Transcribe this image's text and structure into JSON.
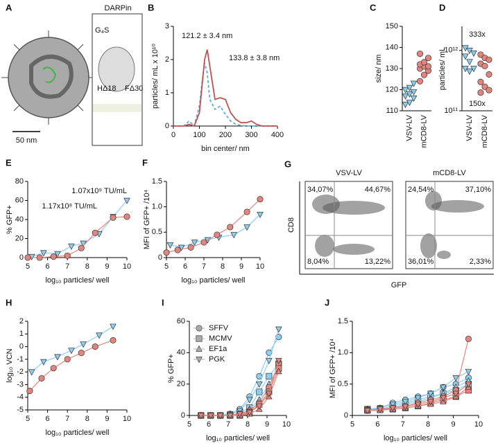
{
  "chart_data": [
    {
      "type": "line",
      "panel": "B",
      "xlabel": "bin center/ nm",
      "ylabel": "particles/ mL x 10¹⁰",
      "x": [
        0,
        40,
        60,
        80,
        100,
        110,
        120,
        130,
        140,
        160,
        180,
        200,
        220,
        240,
        260,
        280,
        300,
        320,
        340,
        360,
        380,
        400
      ],
      "xlim": [
        0,
        400
      ],
      "xticks": [
        0,
        100,
        200,
        300,
        400
      ],
      "ylim": [
        0,
        3
      ],
      "yticks": [
        0,
        1,
        2,
        3
      ],
      "series": [
        {
          "color": "#5aaee0",
          "dash": true,
          "values": [
            0,
            0,
            0.15,
            0,
            0.6,
            1.3,
            1.9,
            1.6,
            0.8,
            0.5,
            0.6,
            0.35,
            0.15,
            0.05,
            0.02,
            0,
            0,
            0,
            0,
            0,
            0,
            0
          ]
        },
        {
          "color": "#c0504d",
          "values": [
            0,
            0,
            0.05,
            0,
            0.4,
            1.2,
            2.0,
            2.3,
            1.8,
            0.8,
            0.85,
            0.8,
            0.4,
            0.2,
            0.1,
            0.1,
            0.15,
            0.05,
            0,
            0,
            0,
            0
          ]
        }
      ],
      "annotations": [
        {
          "text": "121.2 ± 3.4 nm",
          "color": "#5aaee0"
        },
        {
          "text": "133.8 ± 3.8 nm",
          "color": "#c0504d"
        }
      ]
    },
    {
      "type": "strip",
      "panel": "C",
      "ylabel": "size/ nm",
      "categories": [
        "VSV-LV",
        "mCD8-LV"
      ],
      "markers": [
        "triangle-down",
        "circle"
      ],
      "colors": [
        "#8fcdef",
        "#e0867f"
      ],
      "ylim": [
        110,
        150
      ],
      "yticks": [
        110,
        120,
        130,
        140,
        150
      ],
      "values": [
        [
          113,
          114,
          116,
          117,
          118,
          119,
          120,
          121,
          123
        ],
        [
          124,
          127,
          129,
          130,
          131,
          131,
          132,
          133,
          135,
          137
        ]
      ]
    },
    {
      "type": "strip",
      "panel": "D",
      "ylabel": "particles/ mL",
      "categories": [
        "VSV-LV",
        "mCD8-LV"
      ],
      "markers": [
        "triangle-down",
        "circle"
      ],
      "colors": [
        "#8fcdef",
        "#e0867f"
      ],
      "log_y": true,
      "ylim": [
        100000000000.0,
        2500000000000.0
      ],
      "yticks": [
        {
          "value": 100000000000.0,
          "label": "10¹¹"
        },
        {
          "value": 1000000000000.0,
          "label": "10¹²"
        }
      ],
      "values": [
        [
          1100000000000.0,
          1000000000000.0,
          900000000000.0,
          800000000000.0,
          650000000000.0,
          500000000000.0,
          500000000000.0,
          450000000000.0
        ],
        [
          850000000000.0,
          750000000000.0,
          700000000000.0,
          600000000000.0,
          550000000000.0,
          400000000000.0,
          300000000000.0,
          250000000000.0,
          220000000000.0,
          200000000000.0
        ]
      ],
      "annotations": [
        {
          "text": "333x",
          "color": "#111"
        },
        {
          "text": "150x",
          "color": "#111"
        }
      ]
    },
    {
      "type": "line",
      "panel": "E",
      "xlabel": "log₁₀ particles/ well",
      "ylabel": "% GFP+",
      "xlim": [
        5,
        10
      ],
      "xticks": [
        5,
        6,
        7,
        8,
        9,
        10
      ],
      "ylim": [
        0,
        80
      ],
      "yticks": [
        0,
        20,
        40,
        60,
        80
      ],
      "series": [
        {
          "color": "#8fcdef",
          "marker": "triangle-down",
          "x": [
            5.2,
            5.8,
            6.5,
            7.2,
            7.8,
            8.6,
            9.3,
            10
          ],
          "values": [
            1,
            5,
            4,
            12,
            15,
            25,
            43,
            60
          ]
        },
        {
          "color": "#e0867f",
          "marker": "circle",
          "x": [
            5,
            5.6,
            6.3,
            7,
            7.7,
            8.4,
            9.3,
            10
          ],
          "values": [
            0,
            0,
            1,
            2,
            10,
            26,
            42,
            43
          ]
        }
      ],
      "annotations": [
        {
          "text": "1.07x10⁹ TU/mL",
          "color": "#5aaee0"
        },
        {
          "text": "1.17x10⁸ TU/mL",
          "color": "#c0504d"
        }
      ]
    },
    {
      "type": "line",
      "panel": "F",
      "xlabel": "log₁₀ particles/ well",
      "ylabel": "MFI of GFP+ /10⁴",
      "xlim": [
        5,
        10
      ],
      "xticks": [
        5,
        6,
        7,
        8,
        9,
        10
      ],
      "ylim": [
        0,
        1.5
      ],
      "yticks": [
        0,
        0.5,
        {
          "value": 1,
          "label": "1.0"
        },
        1.5
      ],
      "series": [
        {
          "color": "#8fcdef",
          "marker": "triangle-down",
          "x": [
            5.2,
            5.8,
            6.5,
            7.2,
            7.8,
            8.6,
            9.3,
            10
          ],
          "values": [
            0.25,
            0.2,
            0.3,
            0.35,
            0.4,
            0.45,
            0.6,
            0.85
          ]
        },
        {
          "color": "#e0867f",
          "marker": "circle",
          "x": [
            5,
            5.6,
            6.3,
            7,
            7.7,
            8.4,
            9.3,
            10
          ],
          "values": [
            0.1,
            0.15,
            0.2,
            0.3,
            0.45,
            0.6,
            0.9,
            1.15
          ]
        }
      ]
    },
    {
      "type": "line",
      "panel": "H",
      "xlabel": "log₁₀ particles/ well",
      "ylabel": "log₁₀ VCN",
      "xlim": [
        5,
        10
      ],
      "xticks": [
        5,
        6,
        7,
        8,
        9,
        10
      ],
      "ylim": [
        -5,
        2
      ],
      "yticks": [
        -5,
        -4,
        -3,
        -2,
        -1,
        0,
        1,
        2
      ],
      "series": [
        {
          "color": "#8fcdef",
          "marker": "triangle-down",
          "x": [
            5.2,
            5.8,
            6.5,
            7.2,
            7.8,
            8.6,
            9.3
          ],
          "values": [
            -2,
            -1.2,
            -0.8,
            -0.3,
            0.2,
            0.9,
            1.6
          ]
        },
        {
          "color": "#e0867f",
          "marker": "circle",
          "x": [
            5.1,
            5.7,
            6.3,
            7,
            7.7,
            8.4,
            9.3
          ],
          "values": [
            -3.5,
            -2.5,
            -1.7,
            -1,
            -0.5,
            0,
            0.5
          ]
        }
      ]
    },
    {
      "type": "line",
      "panel": "I",
      "xlabel": "log₁₀ particles/ well",
      "ylabel": "% GFP+",
      "xlim": [
        5,
        10
      ],
      "xticks": [
        5,
        6,
        7,
        8,
        9,
        10
      ],
      "ylim": [
        0,
        60
      ],
      "yticks": [
        0,
        20,
        40,
        60
      ],
      "legend": [
        {
          "name": "SFFV",
          "marker": "circle"
        },
        {
          "name": "MCMV",
          "marker": "square"
        },
        {
          "name": "EF1a",
          "marker": "triangle-up"
        },
        {
          "name": "PGK",
          "marker": "triangle-down"
        }
      ],
      "x": [
        5.6,
        6.1,
        6.6,
        7.1,
        7.6,
        8.1,
        8.6,
        9.1,
        9.6
      ],
      "series": [
        {
          "color": "#8fcdef",
          "marker": "circle",
          "values": [
            0,
            0,
            0,
            1,
            4,
            12,
            25,
            40,
            50
          ]
        },
        {
          "color": "#8fcdef",
          "marker": "square",
          "values": [
            0,
            0,
            0,
            0,
            2,
            5,
            15,
            25,
            33
          ]
        },
        {
          "color": "#8fcdef",
          "marker": "triangle-up",
          "values": [
            0,
            0,
            0,
            0,
            1,
            4,
            10,
            20,
            30
          ]
        },
        {
          "color": "#8fcdef",
          "marker": "triangle-down",
          "values": [
            0,
            0,
            0,
            1,
            3,
            10,
            20,
            35,
            55
          ]
        },
        {
          "color": "#e0867f",
          "marker": "circle",
          "values": [
            0,
            0,
            0,
            0,
            1,
            3,
            8,
            18,
            33
          ]
        },
        {
          "color": "#e0867f",
          "marker": "square",
          "values": [
            0,
            0,
            0,
            0,
            0,
            2,
            7,
            15,
            30
          ]
        },
        {
          "color": "#e0867f",
          "marker": "triangle-up",
          "values": [
            0,
            0,
            0,
            0,
            0,
            1,
            4,
            12,
            28
          ]
        },
        {
          "color": "#e0867f",
          "marker": "triangle-down",
          "values": [
            0,
            0,
            0,
            0,
            1,
            2,
            6,
            14,
            35
          ]
        }
      ]
    },
    {
      "type": "line",
      "panel": "J",
      "xlabel": "log₁₀ particles/ well",
      "ylabel": "MFI of GFP+ /10⁴",
      "xlim": [
        5,
        10
      ],
      "xticks": [
        5,
        6,
        7,
        8,
        9,
        10
      ],
      "ylim": [
        0,
        1.5
      ],
      "yticks": [
        0,
        0.5,
        {
          "value": 1,
          "label": "1.0"
        },
        1.5
      ],
      "x": [
        5.6,
        6.1,
        6.6,
        7.1,
        7.6,
        8.1,
        8.6,
        9.1,
        9.6
      ],
      "series": [
        {
          "color": "#8fcdef",
          "marker": "circle",
          "values": [
            0.1,
            0.12,
            0.2,
            0.25,
            0.3,
            0.35,
            0.45,
            0.5,
            0.6
          ]
        },
        {
          "color": "#8fcdef",
          "marker": "square",
          "values": [
            0.1,
            0.1,
            0.15,
            0.2,
            0.25,
            0.3,
            0.35,
            0.4,
            0.5
          ]
        },
        {
          "color": "#8fcdef",
          "marker": "triangle-up",
          "values": [
            0.1,
            0.1,
            0.12,
            0.18,
            0.22,
            0.28,
            0.35,
            0.45,
            0.55
          ]
        },
        {
          "color": "#8fcdef",
          "marker": "triangle-down",
          "values": [
            0.1,
            0.12,
            0.18,
            0.22,
            0.28,
            0.35,
            0.45,
            0.6,
            0.7
          ]
        },
        {
          "color": "#e0867f",
          "marker": "circle",
          "values": [
            0.08,
            0.1,
            0.12,
            0.15,
            0.2,
            0.25,
            0.3,
            0.4,
            1.22
          ]
        },
        {
          "color": "#e0867f",
          "marker": "square",
          "values": [
            0.08,
            0.1,
            0.1,
            0.12,
            0.15,
            0.2,
            0.25,
            0.3,
            0.4
          ]
        },
        {
          "color": "#e0867f",
          "marker": "triangle-up",
          "values": [
            0.08,
            0.08,
            0.1,
            0.12,
            0.15,
            0.18,
            0.22,
            0.3,
            0.45
          ]
        },
        {
          "color": "#e0867f",
          "marker": "triangle-down",
          "values": [
            0.08,
            0.1,
            0.12,
            0.14,
            0.18,
            0.22,
            0.28,
            0.35,
            0.5
          ]
        }
      ]
    }
  ],
  "diagram": {
    "panel": "A",
    "labels": [
      "DARPin",
      "G₄S",
      "HΔ18",
      "FΔ30"
    ],
    "scale_bar": "50 nm"
  },
  "flow": {
    "panel": "G",
    "x_label": "GFP",
    "y_label": "CD8",
    "plots": [
      {
        "title": "VSV-LV",
        "quadrants": [
          "34,07%",
          "44,67%",
          "8,04%",
          "13,22%"
        ]
      },
      {
        "title": "mCD8-LV",
        "quadrants": [
          "24,54%",
          "37,10%",
          "36,01%",
          "2,33%"
        ]
      }
    ]
  }
}
